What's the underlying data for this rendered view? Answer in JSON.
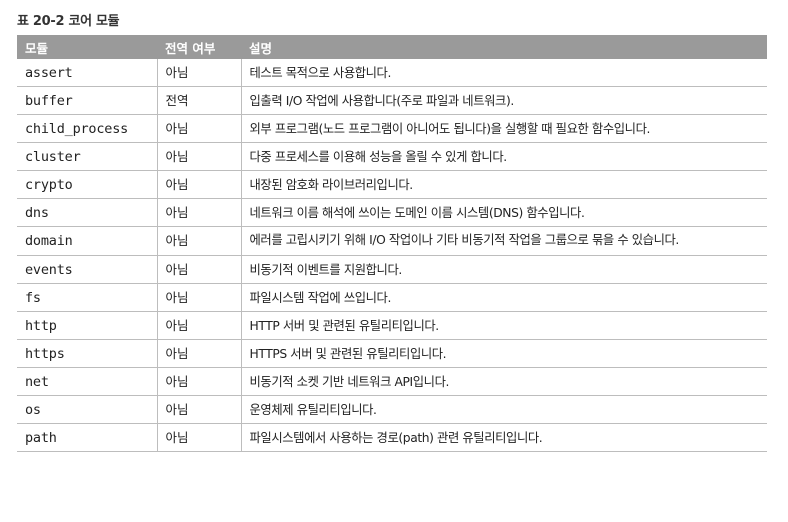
{
  "caption": "표 20-2 코어 모듈",
  "columns": [
    "모듈",
    "전역 여부",
    "설명"
  ],
  "rows": [
    {
      "module": "assert",
      "global": "아님",
      "description": "테스트 목적으로 사용합니다."
    },
    {
      "module": "buffer",
      "global": "전역",
      "description": "입출력 I/O 작업에 사용합니다(주로 파일과 네트워크)."
    },
    {
      "module": "child_process",
      "global": "아님",
      "description": "외부 프로그램(노드 프로그램이 아니어도 됩니다)을 실행할 때 필요한 함수입니다."
    },
    {
      "module": "cluster",
      "global": "아님",
      "description": "다중 프로세스를 이용해 성능을 올릴 수 있게 합니다."
    },
    {
      "module": "crypto",
      "global": "아님",
      "description": "내장된 암호화 라이브러리입니다."
    },
    {
      "module": "dns",
      "global": "아님",
      "description": "네트워크 이름 해석에 쓰이는 도메인 이름 시스템(DNS) 함수입니다."
    },
    {
      "module": "domain",
      "global": "아님",
      "description": "에러를 고립시키기 위해 I/O 작업이나 기타 비동기적 작업을 그룹으로 묶을 수 있습니다."
    },
    {
      "module": "events",
      "global": "아님",
      "description": "비동기적 이벤트를 지원합니다."
    },
    {
      "module": "fs",
      "global": "아님",
      "description": "파일시스템 작업에 쓰입니다."
    },
    {
      "module": "http",
      "global": "아님",
      "description": "HTTP 서버 및 관련된 유틸리티입니다."
    },
    {
      "module": "https",
      "global": "아님",
      "description": "HTTPS 서버 및 관련된 유틸리티입니다."
    },
    {
      "module": "net",
      "global": "아님",
      "description": "비동기적 소켓 기반 네트워크 API입니다."
    },
    {
      "module": "os",
      "global": "아님",
      "description": "운영체제 유틸리티입니다."
    },
    {
      "module": "path",
      "global": "아님",
      "description": "파일시스템에서 사용하는 경로(path) 관련 유틸리티입니다."
    }
  ]
}
